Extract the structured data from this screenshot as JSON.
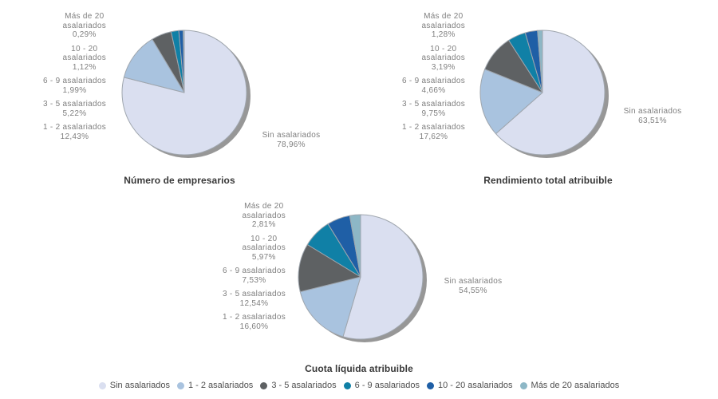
{
  "style": {
    "background": "#ffffff",
    "shadow_color": "#979797",
    "slice_border_color": "#9fa6ae",
    "label_text_color": "#7f7f7f",
    "title_text_color": "#383838",
    "legend_text_color": "#4f4f4f"
  },
  "categories": [
    {
      "label": "Sin asalariados",
      "label_lines": [
        "Sin asalariados"
      ],
      "color": "#dadff0"
    },
    {
      "label": "1 - 2 asalariados",
      "label_lines": [
        "1 - 2 asalariados"
      ],
      "color": "#a9c3df"
    },
    {
      "label": "3 - 5 asalariados",
      "label_lines": [
        "3 - 5 asalariados"
      ],
      "color": "#5e6163"
    },
    {
      "label": "6 - 9 asalariados",
      "label_lines": [
        "6 - 9 asalariados"
      ],
      "color": "#1080a6"
    },
    {
      "label": "10 - 20 asalariados",
      "label_lines": [
        "10 - 20",
        "asalariados"
      ],
      "color": "#1f5fa6"
    },
    {
      "label": "Más de 20 asalariados",
      "label_lines": [
        "Más de 20",
        "asalariados"
      ],
      "color": "#8db7c6"
    }
  ],
  "chart_data": [
    {
      "type": "pie",
      "title": "Número de empresarios",
      "labels": [
        "Sin asalariados",
        "1 - 2 asalariados",
        "3 - 5 asalariados",
        "6 - 9 asalariados",
        "10 - 20 asalariados",
        "Más de 20 asalariados"
      ],
      "values": [
        78.96,
        12.43,
        5.22,
        1.99,
        1.12,
        0.29
      ],
      "value_labels": [
        "78,96%",
        "12,43%",
        "5,22%",
        "1,99%",
        "1,12%",
        "0,29%"
      ],
      "start_angle": "12 o'clock",
      "direction": "clockwise",
      "legend_position": "shared-bottom"
    },
    {
      "type": "pie",
      "title": "Rendimiento total atribuible",
      "labels": [
        "Sin asalariados",
        "1 - 2 asalariados",
        "3 - 5 asalariados",
        "6 - 9 asalariados",
        "10 - 20 asalariados",
        "Más de 20 asalariados"
      ],
      "values": [
        63.51,
        17.62,
        9.75,
        4.66,
        3.19,
        1.28
      ],
      "value_labels": [
        "63,51%",
        "17,62%",
        "9,75%",
        "4,66%",
        "3,19%",
        "1,28%"
      ],
      "start_angle": "12 o'clock",
      "direction": "clockwise",
      "legend_position": "shared-bottom"
    },
    {
      "type": "pie",
      "title": "Cuota líquida atribuible",
      "labels": [
        "Sin asalariados",
        "1 - 2 asalariados",
        "3 - 5 asalariados",
        "6 - 9 asalariados",
        "10 - 20 asalariados",
        "Más de 20 asalariados"
      ],
      "values": [
        54.55,
        16.6,
        12.54,
        7.53,
        5.97,
        2.81
      ],
      "value_labels": [
        "54,55%",
        "16,60%",
        "12,54%",
        "7,53%",
        "5,97%",
        "2,81%"
      ],
      "start_angle": "12 o'clock",
      "direction": "clockwise",
      "legend_position": "shared-bottom"
    }
  ]
}
